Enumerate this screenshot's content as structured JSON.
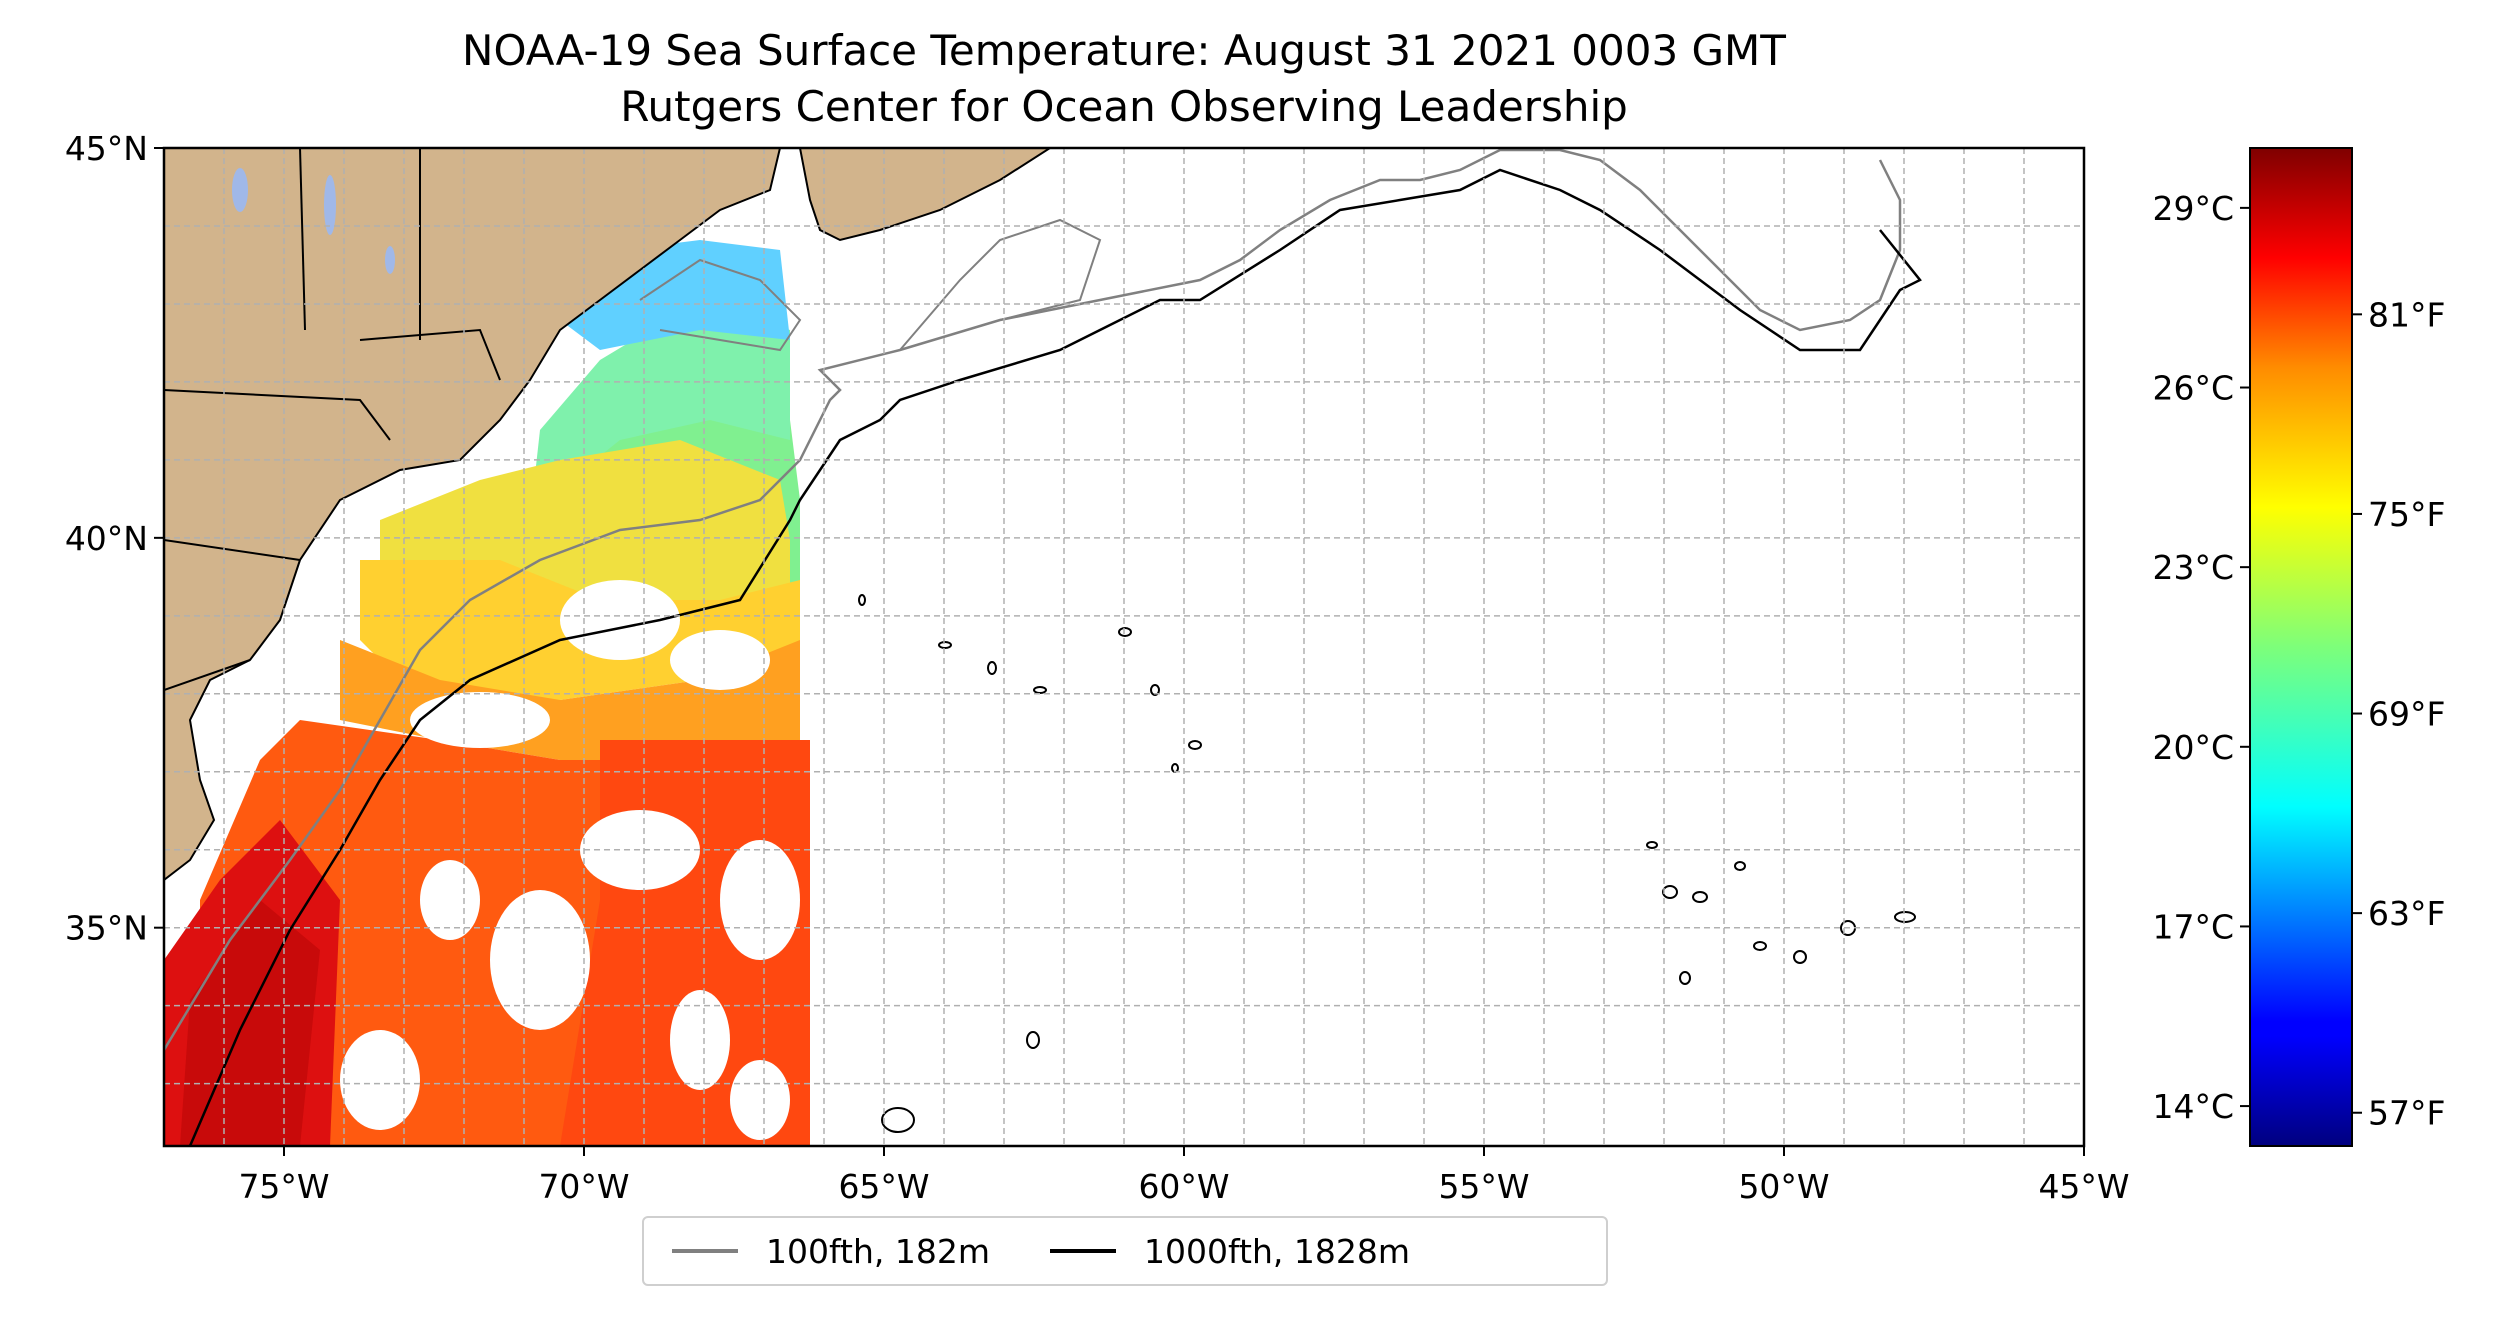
{
  "title": {
    "line1": "NOAA-19 Sea Surface Temperature: August 31 2021 0003 GMT",
    "line2": "Rutgers Center for Ocean Observing Leadership"
  },
  "map": {
    "lon_range": [
      -77,
      -45
    ],
    "lat_range": [
      32.2,
      45
    ],
    "x_ticks": [
      "75°W",
      "70°W",
      "65°W",
      "60°W",
      "55°W",
      "50°W",
      "45°W"
    ],
    "y_ticks": [
      "45°N",
      "40°N",
      "35°N"
    ],
    "land_color": "#d2b48c",
    "ocean_color": "#ffffff",
    "grid": true,
    "bathymetry": [
      {
        "name": "100fth, 182m",
        "color": "#808080"
      },
      {
        "name": "1000fth, 1828m",
        "color": "#000000"
      }
    ]
  },
  "colorbar": {
    "colormap": "jet",
    "celsius_ticks": [
      "29°C",
      "26°C",
      "23°C",
      "20°C",
      "17°C",
      "14°C"
    ],
    "fahrenheit_ticks": [
      "81°F",
      "75°F",
      "69°F",
      "63°F",
      "57°F"
    ],
    "range_f": [
      56,
      86
    ]
  },
  "legend": {
    "items": [
      {
        "label": "100fth, 182m",
        "color": "#808080"
      },
      {
        "label": "1000fth, 1828m",
        "color": "#000000"
      }
    ],
    "placement": "bottom-center"
  }
}
